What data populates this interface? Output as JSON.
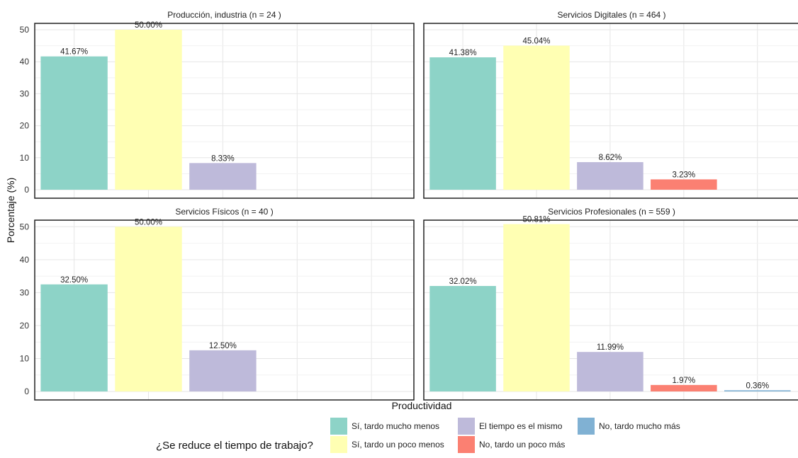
{
  "chart_data": {
    "type": "bar",
    "ylabel": "Porcentaje (%)",
    "xlabel": "Productividad",
    "ylim": [
      0,
      52
    ],
    "yticks": [
      0,
      10,
      20,
      30,
      40,
      50
    ],
    "grid": true,
    "legend": {
      "title": "¿Se reduce el tiempo de trabajo?",
      "placement": "bottom",
      "entries": [
        {
          "label": "Sí, tardo mucho menos",
          "color": "#8dd3c7"
        },
        {
          "label": "Sí, tardo un poco menos",
          "color": "#ffffb3"
        },
        {
          "label": "El tiempo es el mismo",
          "color": "#bebada"
        },
        {
          "label": "No, tardo un poco más",
          "color": "#fb8072"
        },
        {
          "label": "No, tardo mucho más",
          "color": "#80b1d3"
        }
      ]
    },
    "categories": [
      "Sí, tardo mucho menos",
      "Sí, tardo un poco menos",
      "El tiempo es el mismo",
      "No, tardo un poco más",
      "No, tardo mucho más"
    ],
    "panels": [
      {
        "title": "Producción, industria (n = 24 )",
        "values": [
          41.67,
          50.0,
          8.33,
          null,
          null
        ],
        "labels": [
          "41.67%",
          "50.00%",
          "8.33%",
          "",
          ""
        ]
      },
      {
        "title": "Servicios Digitales (n = 464 )",
        "values": [
          41.38,
          45.04,
          8.62,
          3.23,
          null
        ],
        "labels": [
          "41.38%",
          "45.04%",
          "8.62%",
          "3.23%",
          ""
        ]
      },
      {
        "title": "Servicios Físicos (n = 40 )",
        "values": [
          32.5,
          50.0,
          12.5,
          null,
          null
        ],
        "labels": [
          "32.50%",
          "50.00%",
          "12.50%",
          "",
          ""
        ]
      },
      {
        "title": "Servicios Profesionales (n = 559 )",
        "values": [
          32.02,
          50.81,
          11.99,
          1.97,
          0.36
        ],
        "labels": [
          "32.02%",
          "50.81%",
          "11.99%",
          "1.97%",
          "0.36%"
        ]
      }
    ]
  }
}
